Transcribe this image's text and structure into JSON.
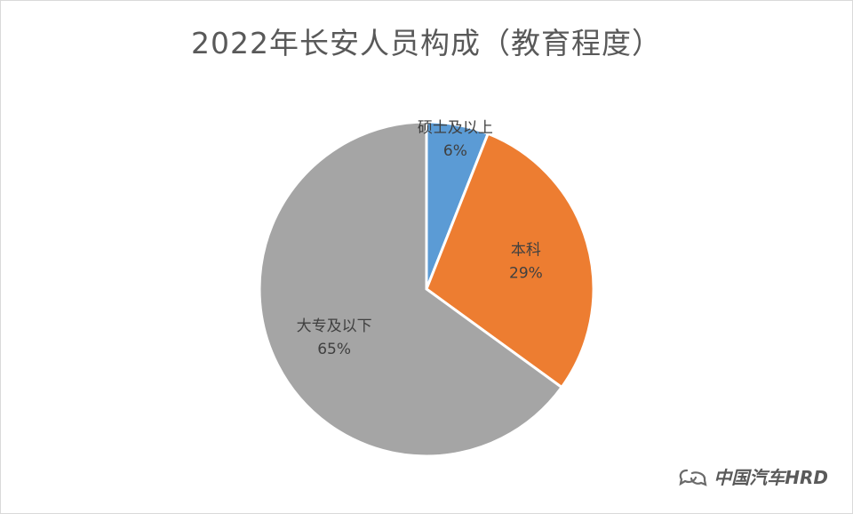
{
  "chart_data": {
    "type": "pie",
    "title": "2022年长安人员构成（教育程度）",
    "categories": [
      "硕士及以上",
      "本科",
      "大专及以下"
    ],
    "values": [
      6,
      29,
      65
    ],
    "value_labels": [
      "6%",
      "29%",
      "65%"
    ],
    "colors": [
      "#5b9bd5",
      "#ed7d31",
      "#a5a5a5"
    ],
    "start": "12 o'clock",
    "direction": "clockwise",
    "legend": "none",
    "data_labels": "inside"
  },
  "watermark": {
    "text": "中国汽车HRD",
    "icon": "wechat-icon"
  }
}
